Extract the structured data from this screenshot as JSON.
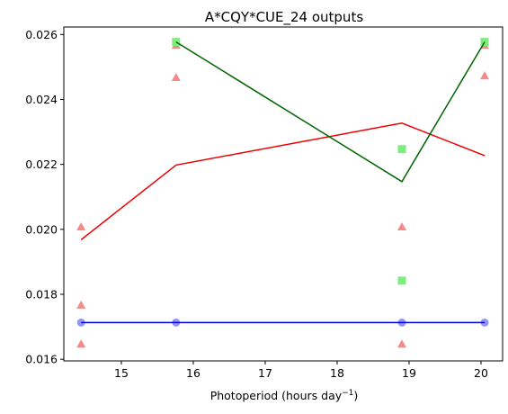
{
  "chart_data": {
    "type": "scatter",
    "title": "A*CQY*CUE_24 outputs",
    "xlabel_main": "Photoperiod (hours day",
    "xlabel_sup": "−1",
    "xlabel_close": ")",
    "ylabel": "",
    "xlim": [
      14.2,
      20.3
    ],
    "ylim": [
      0.01595,
      0.02623
    ],
    "xticks": [
      15,
      16,
      17,
      18,
      19,
      20
    ],
    "yticks": [
      0.016,
      0.018,
      0.02,
      0.022,
      0.024,
      0.026
    ],
    "ytick_labels": [
      "0.016",
      "0.018",
      "0.020",
      "0.022",
      "0.024",
      "0.026"
    ],
    "grid": false,
    "series": [
      {
        "kind": "points",
        "marker": "triangle",
        "color": "#f48a8a",
        "points": [
          [
            14.44,
            0.02008
          ],
          [
            14.44,
            0.01767
          ],
          [
            14.44,
            0.01647
          ],
          [
            15.76,
            0.02567
          ],
          [
            15.76,
            0.02468
          ],
          [
            18.9,
            0.02008
          ],
          [
            18.9,
            0.01647
          ],
          [
            20.05,
            0.02567
          ],
          [
            20.05,
            0.02473
          ]
        ]
      },
      {
        "kind": "points",
        "marker": "square",
        "color": "#7ded7d",
        "points": [
          [
            15.76,
            0.02577
          ],
          [
            18.9,
            0.02247
          ],
          [
            18.9,
            0.01842
          ],
          [
            20.05,
            0.02577
          ]
        ]
      },
      {
        "kind": "points",
        "marker": "circle",
        "color": "#9696f5",
        "points": [
          [
            14.44,
            0.01713
          ],
          [
            15.76,
            0.01713
          ],
          [
            18.9,
            0.01713
          ],
          [
            20.05,
            0.01713
          ]
        ]
      },
      {
        "kind": "line",
        "color": "#ee0000",
        "points": [
          [
            14.44,
            0.01968
          ],
          [
            15.76,
            0.02198
          ],
          [
            18.9,
            0.02327
          ],
          [
            20.05,
            0.02227
          ]
        ]
      },
      {
        "kind": "line",
        "color": "#006400",
        "points": [
          [
            15.76,
            0.02577
          ],
          [
            18.9,
            0.02147
          ],
          [
            20.05,
            0.02577
          ]
        ]
      },
      {
        "kind": "line",
        "color": "#0000ee",
        "points": [
          [
            14.44,
            0.01713
          ],
          [
            15.76,
            0.01713
          ],
          [
            18.9,
            0.01713
          ],
          [
            20.05,
            0.01713
          ]
        ]
      }
    ]
  }
}
